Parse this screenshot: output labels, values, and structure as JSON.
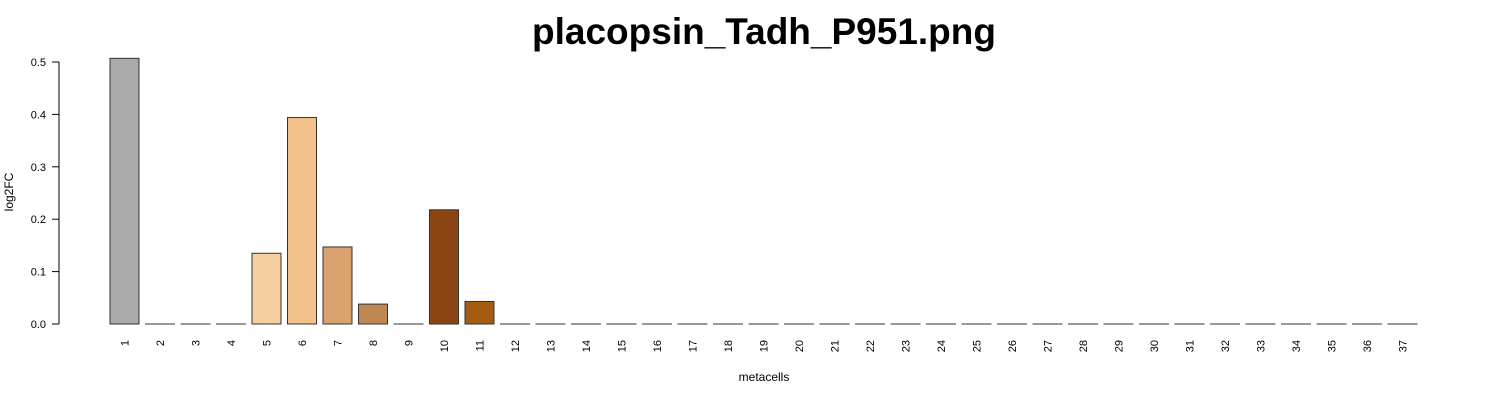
{
  "chart_data": {
    "type": "bar",
    "title": "placopsin_Tadh_P951.png",
    "xlabel": "metacells",
    "ylabel": "log2FC",
    "ylim": [
      0,
      0.5
    ],
    "yticks": [
      0.0,
      0.1,
      0.2,
      0.3,
      0.4,
      0.5
    ],
    "ytick_labels": [
      "0.0",
      "0.1",
      "0.2",
      "0.3",
      "0.4",
      "0.5"
    ],
    "grid": false,
    "legend": "none",
    "categories": [
      "1",
      "2",
      "3",
      "4",
      "5",
      "6",
      "7",
      "8",
      "9",
      "10",
      "11",
      "12",
      "13",
      "14",
      "15",
      "16",
      "17",
      "18",
      "19",
      "20",
      "21",
      "22",
      "23",
      "24",
      "25",
      "26",
      "27",
      "28",
      "29",
      "30",
      "31",
      "32",
      "33",
      "34",
      "35",
      "36",
      "37"
    ],
    "values": [
      0.507,
      0,
      0,
      0,
      0.135,
      0.394,
      0.147,
      0.038,
      0,
      0.218,
      0.043,
      0,
      0,
      0,
      0,
      0,
      0,
      0,
      0,
      0,
      0,
      0,
      0,
      0,
      0,
      0,
      0,
      0,
      0,
      0,
      0,
      0,
      0,
      0,
      0,
      0,
      0
    ],
    "colors": [
      "#aaaaaa",
      "#aaaaaa",
      "#aaaaaa",
      "#aaaaaa",
      "#f5cf9f",
      "#f2c28a",
      "#daa26e",
      "#c08752",
      "#aaaaaa",
      "#8b4513",
      "#a55c12",
      "#aaaaaa",
      "#aaaaaa",
      "#aaaaaa",
      "#aaaaaa",
      "#aaaaaa",
      "#aaaaaa",
      "#aaaaaa",
      "#aaaaaa",
      "#aaaaaa",
      "#aaaaaa",
      "#aaaaaa",
      "#aaaaaa",
      "#aaaaaa",
      "#aaaaaa",
      "#aaaaaa",
      "#aaaaaa",
      "#aaaaaa",
      "#aaaaaa",
      "#aaaaaa",
      "#aaaaaa",
      "#aaaaaa",
      "#aaaaaa",
      "#aaaaaa",
      "#aaaaaa",
      "#aaaaaa",
      "#aaaaaa"
    ]
  }
}
